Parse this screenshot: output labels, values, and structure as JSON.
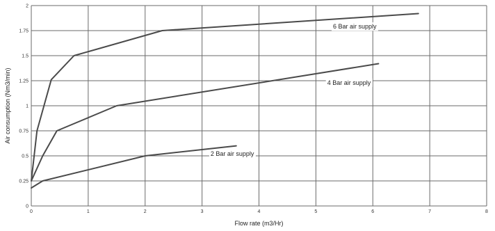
{
  "chart_data": {
    "type": "line",
    "title": "",
    "xlabel": "Flow rate (m3/Hr)",
    "ylabel": "Air consumption (Nm3/min)",
    "xlim": [
      0,
      8
    ],
    "ylim": [
      0,
      2
    ],
    "x_ticks": [
      0,
      1,
      2,
      3,
      4,
      5,
      6,
      7,
      8
    ],
    "x_tick_labels": [
      "0",
      "1",
      "2",
      "3",
      "4",
      "5",
      "6",
      "7",
      "8"
    ],
    "y_ticks": [
      0,
      0.25,
      0.5,
      0.75,
      1,
      1.25,
      1.5,
      1.75,
      2
    ],
    "y_tick_labels": [
      "0",
      "0.25",
      "0.5",
      "0.75",
      "1",
      "1.25",
      "1.5",
      "1.75",
      "2"
    ],
    "grid": true,
    "series": [
      {
        "name": "6 Bar air supply",
        "points": [
          [
            0,
            0.25
          ],
          [
            0.1,
            0.75
          ],
          [
            0.35,
            1.26
          ],
          [
            0.75,
            1.5
          ],
          [
            2.3,
            1.75
          ],
          [
            6.8,
            1.92
          ]
        ],
        "label_at": [
          5.3,
          1.79
        ]
      },
      {
        "name": "4 Bar air supply",
        "points": [
          [
            0,
            0.25
          ],
          [
            0.2,
            0.5
          ],
          [
            0.45,
            0.75
          ],
          [
            1.5,
            1.0
          ],
          [
            6.1,
            1.42
          ]
        ],
        "label_at": [
          5.2,
          1.23
        ]
      },
      {
        "name": "2 Bar air supply",
        "points": [
          [
            0,
            0.18
          ],
          [
            0.2,
            0.25
          ],
          [
            2.0,
            0.5
          ],
          [
            3.6,
            0.6
          ]
        ],
        "label_at": [
          3.15,
          0.52
        ]
      }
    ]
  }
}
